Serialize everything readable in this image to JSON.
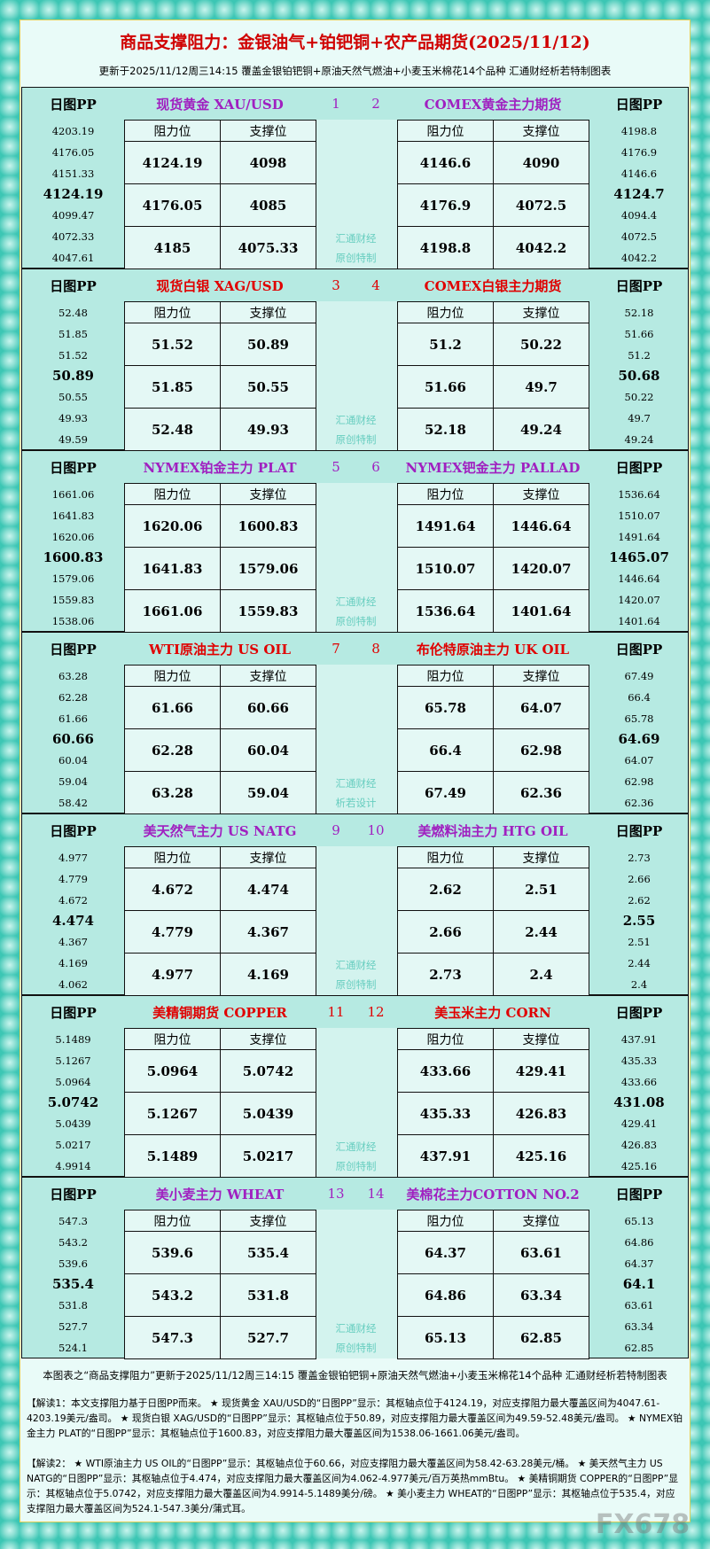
{
  "header": {
    "title": "商品支撑阻力：金银油气+铂钯铜+农产品期货(2025/11/12)",
    "subtitle": "更新于2025/11/12周三14:15  覆盖金银铂钯铜+原油天然气燃油+小麦玉米棉花14个品种  汇通财经析若特制图表"
  },
  "labels": {
    "pp": "日图PP",
    "resistance": "阻力位",
    "support": "支撑位"
  },
  "blocks": [
    {
      "color": "#a020c0",
      "watermark": [
        "汇通财经",
        "原创特制"
      ],
      "left": {
        "name": "现货黄金 XAU/USD",
        "number": 1,
        "pp": [
          4203.19,
          4176.05,
          4151.33,
          4124.19,
          4099.47,
          4072.33,
          4047.61
        ],
        "resistance": [
          4124.19,
          4176.05,
          4185
        ],
        "support": [
          4098,
          4085,
          4075.33
        ]
      },
      "right": {
        "name": "COMEX黄金主力期货",
        "number": 2,
        "pp": [
          4198.8,
          4176.9,
          4146.6,
          4124.7,
          4094.4,
          4072.5,
          4042.2
        ],
        "resistance": [
          4146.6,
          4176.9,
          4198.8
        ],
        "support": [
          4090,
          4072.5,
          4042.2
        ]
      }
    },
    {
      "color": "#e00000",
      "watermark": [
        "汇通财经",
        "原创特制"
      ],
      "left": {
        "name": "现货白银 XAG/USD",
        "number": 3,
        "pp": [
          52.48,
          51.85,
          51.52,
          50.89,
          50.55,
          49.93,
          49.59
        ],
        "resistance": [
          51.52,
          51.85,
          52.48
        ],
        "support": [
          50.89,
          50.55,
          49.93
        ]
      },
      "right": {
        "name": "COMEX白银主力期货",
        "number": 4,
        "pp": [
          52.18,
          51.66,
          51.2,
          50.68,
          50.22,
          49.7,
          49.24
        ],
        "resistance": [
          51.2,
          51.66,
          52.18
        ],
        "support": [
          50.22,
          49.7,
          49.24
        ]
      }
    },
    {
      "color": "#a020c0",
      "watermark": [
        "汇通财经",
        "原创特制"
      ],
      "left": {
        "name": "NYMEX铂金主力 PLAT",
        "number": 5,
        "pp": [
          1661.06,
          1641.83,
          1620.06,
          1600.83,
          1579.06,
          1559.83,
          1538.06
        ],
        "resistance": [
          1620.06,
          1641.83,
          1661.06
        ],
        "support": [
          1600.83,
          1579.06,
          1559.83
        ]
      },
      "right": {
        "name": "NYMEX钯金主力 PALLAD",
        "number": 6,
        "pp": [
          1536.64,
          1510.07,
          1491.64,
          1465.07,
          1446.64,
          1420.07,
          1401.64
        ],
        "resistance": [
          1491.64,
          1510.07,
          1536.64
        ],
        "support": [
          1446.64,
          1420.07,
          1401.64
        ]
      }
    },
    {
      "color": "#e00000",
      "watermark": [
        "汇通财经",
        "析若设计"
      ],
      "left": {
        "name": "WTI原油主力 US OIL",
        "number": 7,
        "pp": [
          63.28,
          62.28,
          61.66,
          60.66,
          60.04,
          59.04,
          58.42
        ],
        "resistance": [
          61.66,
          62.28,
          63.28
        ],
        "support": [
          60.66,
          60.04,
          59.04
        ]
      },
      "right": {
        "name": "布伦特原油主力 UK OIL",
        "number": 8,
        "pp": [
          67.49,
          66.4,
          65.78,
          64.69,
          64.07,
          62.98,
          62.36
        ],
        "resistance": [
          65.78,
          66.4,
          67.49
        ],
        "support": [
          64.07,
          62.98,
          62.36
        ]
      }
    },
    {
      "color": "#a020c0",
      "watermark": [
        "汇通财经",
        "原创特制"
      ],
      "left": {
        "name": "美天然气主力 US NATG",
        "number": 9,
        "pp": [
          4.977,
          4.779,
          4.672,
          4.474,
          4.367,
          4.169,
          4.062
        ],
        "resistance": [
          4.672,
          4.779,
          4.977
        ],
        "support": [
          4.474,
          4.367,
          4.169
        ]
      },
      "right": {
        "name": "美燃料油主力 HTG OIL",
        "number": 10,
        "pp": [
          2.73,
          2.66,
          2.62,
          2.55,
          2.51,
          2.44,
          2.4
        ],
        "resistance": [
          2.62,
          2.66,
          2.73
        ],
        "support": [
          2.51,
          2.44,
          2.4
        ]
      }
    },
    {
      "color": "#e00000",
      "watermark": [
        "汇通财经",
        "原创特制"
      ],
      "left": {
        "name": "美精铜期货 COPPER",
        "number": 11,
        "pp": [
          5.1489,
          5.1267,
          5.0964,
          5.0742,
          5.0439,
          5.0217,
          4.9914
        ],
        "resistance": [
          5.0964,
          5.1267,
          5.1489
        ],
        "support": [
          5.0742,
          5.0439,
          5.0217
        ]
      },
      "right": {
        "name": "美玉米主力 CORN",
        "number": 12,
        "pp": [
          437.91,
          435.33,
          433.66,
          431.08,
          429.41,
          426.83,
          425.16
        ],
        "resistance": [
          433.66,
          435.33,
          437.91
        ],
        "support": [
          429.41,
          426.83,
          425.16
        ]
      }
    },
    {
      "color": "#a020c0",
      "watermark": [
        "汇通财经",
        "原创特制"
      ],
      "left": {
        "name": "美小麦主力 WHEAT",
        "number": 13,
        "pp": [
          547.3,
          543.2,
          539.6,
          535.4,
          531.8,
          527.7,
          524.1
        ],
        "resistance": [
          539.6,
          543.2,
          547.3
        ],
        "support": [
          535.4,
          531.8,
          527.7
        ]
      },
      "right": {
        "name": "美棉花主力COTTON NO.2",
        "number": 14,
        "pp": [
          65.13,
          64.86,
          64.37,
          64.1,
          63.61,
          63.34,
          62.85
        ],
        "resistance": [
          64.37,
          64.86,
          65.13
        ],
        "support": [
          63.61,
          63.34,
          62.85
        ]
      }
    }
  ],
  "footer": {
    "caption": "本图表之“商品支撑阻力”更新于2025/11/12周三14:15 覆盖金银铂钯铜+原油天然气燃油+小麦玉米棉花14个品种 汇通财经析若特制图表",
    "notes": [
      "【解读1：本文支撑阻力基于日图PP而来。 ★ 现货黄金 XAU/USD的“日图PP”显示：其枢轴点位于4124.19，对应支撑阻力最大覆盖区间为4047.61-4203.19美元/盎司。 ★ 现货白银 XAG/USD的“日图PP”显示：其枢轴点位于50.89，对应支撑阻力最大覆盖区间为49.59-52.48美元/盎司。 ★ NYMEX铂金主力 PLAT的“日图PP”显示：其枢轴点位于1600.83，对应支撑阻力最大覆盖区间为1538.06-1661.06美元/盎司。",
      "【解读2： ★ WTI原油主力 US OIL的“日图PP”显示：其枢轴点位于60.66，对应支撑阻力最大覆盖区间为58.42-63.28美元/桶。 ★ 美天然气主力 US NATG的“日图PP”显示：其枢轴点位于4.474，对应支撑阻力最大覆盖区间为4.062-4.977美元/百万英热mmBtu。 ★ 美精铜期货 COPPER的“日图PP”显示：其枢轴点位于5.0742，对应支撑阻力最大覆盖区间为4.9914-5.1489美分/磅。 ★ 美小麦主力 WHEAT的“日图PP”显示：其枢轴点位于535.4，对应支撑阻力最大覆盖区间为524.1-547.3美分/蒲式耳。"
    ],
    "logo": "FX678"
  }
}
